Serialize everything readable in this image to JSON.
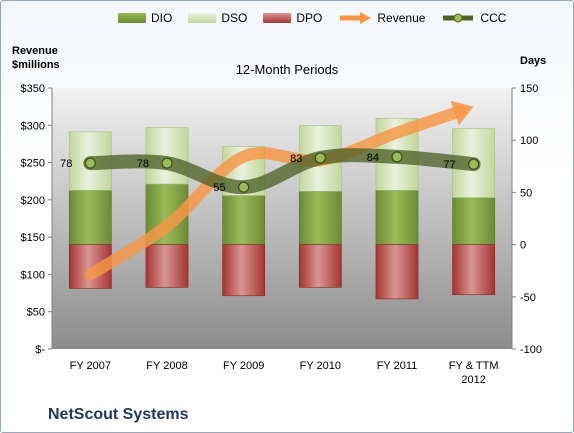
{
  "chart_data": {
    "type": "bar",
    "title": "12-Month Periods",
    "left_axis_title": "Revenue $millions",
    "right_axis_title": "Days",
    "company": "NetScout Systems",
    "categories": [
      "FY 2007",
      "FY 2008",
      "FY 2009",
      "FY 2010",
      "FY 2011",
      "FY & TTM 2012"
    ],
    "left_ticks": [
      "$-",
      "$50",
      "$100",
      "$150",
      "$200",
      "$250",
      "$300",
      "$350"
    ],
    "right_ticks": [
      "-100",
      "-50",
      "0",
      "50",
      "100",
      "150"
    ],
    "ylim_left": [
      0,
      350
    ],
    "ylim_right": [
      -100,
      150
    ],
    "series": [
      {
        "name": "DIO",
        "axis": "right",
        "color": "#77933c",
        "values": [
          52,
          58,
          47,
          51,
          52,
          45
        ]
      },
      {
        "name": "DSO",
        "axis": "right",
        "color": "#d7e4bd",
        "values": [
          56,
          54,
          47,
          63,
          69,
          66
        ]
      },
      {
        "name": "DPO",
        "axis": "right",
        "color": "#c0504d",
        "values": [
          -42,
          -41,
          -49,
          -41,
          -52,
          -48
        ]
      },
      {
        "name": "Revenue",
        "axis": "left",
        "color": "#f79646",
        "values": [
          100,
          165,
          258,
          253,
          290,
          325
        ]
      },
      {
        "name": "CCC",
        "axis": "right",
        "color": "#4f6228",
        "values": [
          78,
          78,
          55,
          83,
          84,
          77
        ]
      }
    ],
    "ccc_labels": [
      "78",
      "78",
      "55",
      "83",
      "84",
      "77"
    ],
    "legend_position": "top",
    "grid": false
  }
}
